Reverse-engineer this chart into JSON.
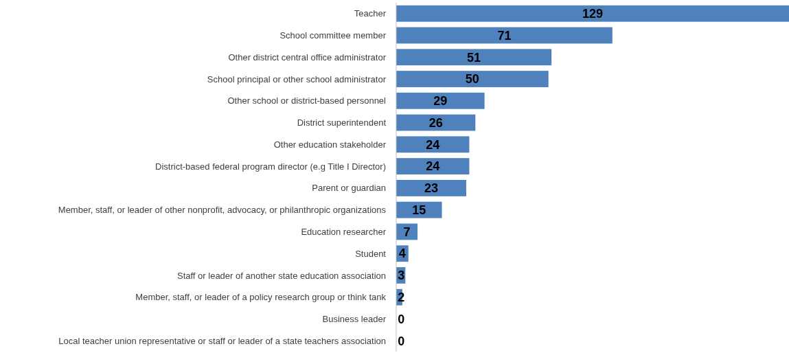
{
  "chart_data": {
    "type": "bar",
    "orientation": "horizontal",
    "data_labels": true,
    "color": "#4f81bd",
    "categories": [
      "Teacher",
      "School committee member",
      "Other district central office administrator",
      "School principal or other school administrator",
      "Other school or district-based personnel",
      "District superintendent",
      "Other education stakeholder",
      "District-based federal program director (e.g Title I Director)",
      "Parent or guardian",
      "Member, staff, or leader of other nonprofit, advocacy, or philanthropic organizations",
      "Education researcher",
      "Student",
      "Staff or leader of another state education association",
      "Member, staff, or leader of a policy research group or think tank",
      "Business leader",
      "Local teacher union representative or staff or leader of a state teachers association"
    ],
    "values": [
      129,
      71,
      51,
      50,
      29,
      26,
      24,
      24,
      23,
      15,
      7,
      4,
      3,
      2,
      0,
      0
    ]
  }
}
